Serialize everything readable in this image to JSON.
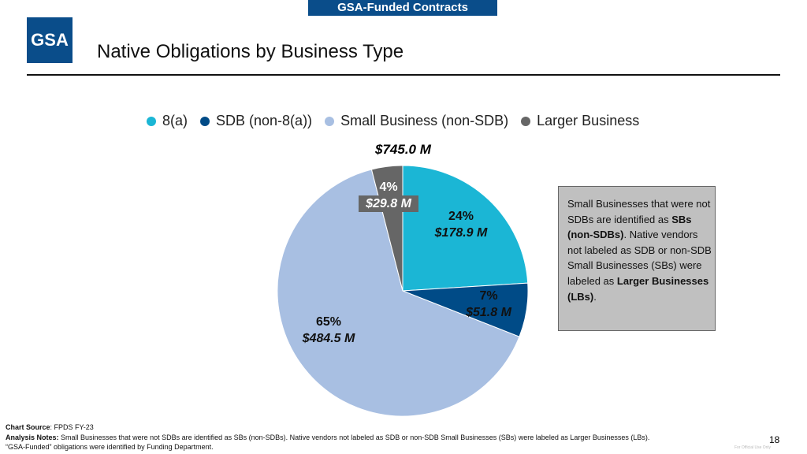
{
  "banner": "GSA-Funded Contracts",
  "logo": "GSA",
  "title": "Native Obligations by Business Type",
  "chart_data": {
    "type": "pie",
    "title": "$745.0 M",
    "legend_position": "top",
    "slices": [
      {
        "name": "8(a)",
        "percent": 24,
        "value_label": "$178.9 M",
        "value": 178.9,
        "color": "#1bb6d5"
      },
      {
        "name": "SDB (non-8(a))",
        "percent": 7,
        "value_label": "$51.8 M",
        "value": 51.8,
        "color": "#004b87"
      },
      {
        "name": "Small Business (non-SDB)",
        "percent": 65,
        "value_label": "$484.5 M",
        "value": 484.5,
        "color": "#a8bfe2"
      },
      {
        "name": "Larger Business",
        "percent": 4,
        "value_label": "$29.8 M",
        "value": 29.8,
        "color": "#666666"
      }
    ],
    "percent_labels": [
      "24%",
      "7%",
      "65%",
      "4%"
    ]
  },
  "note": {
    "t1": "Small Businesses that were not SDBs are identified as ",
    "b1": "SBs (non-SDBs)",
    "t2": ". Native vendors not labeled as SDB or non-SDB Small Businesses (SBs) were labeled as ",
    "b2": "Larger Businesses (LBs)",
    "t3": "."
  },
  "footer": {
    "source_label": "Chart Source",
    "source": ": FPDS FY-23",
    "notes_label": "Analysis Notes:",
    "notes": " Small Businesses that were not SDBs are identified as SBs (non-SDBs). Native vendors not labeled as SDB or non-SDB Small Businesses (SBs) were labeled as Larger Businesses (LBs).",
    "line3": "“GSA-Funded” obligations were identified by Funding Department.",
    "page": "18",
    "fouo": "For Official Use Only"
  }
}
